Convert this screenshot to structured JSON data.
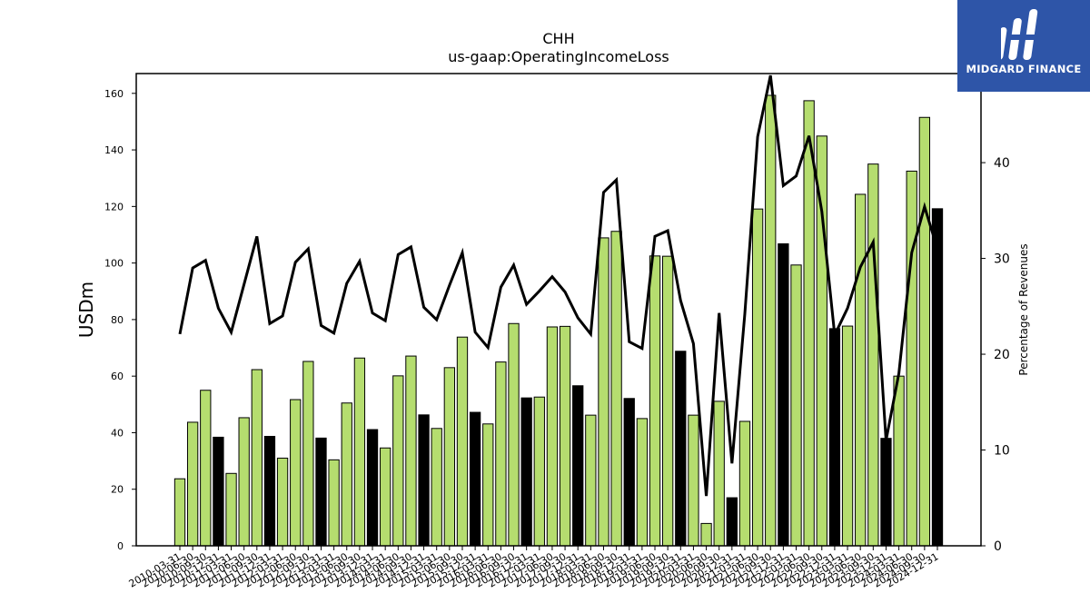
{
  "logo": {
    "text": "MIDGARD FINANCE"
  },
  "chart_data": {
    "type": "bar",
    "title": "CHH",
    "subtitle": "us-gaap:OperatingIncomeLoss",
    "ylabel": "USDm",
    "y2label": "Percentage of Revenues",
    "ylim": [
      0,
      167
    ],
    "y2lim": [
      0,
      49.3
    ],
    "yticks": [
      0,
      20,
      40,
      60,
      80,
      100,
      120,
      140,
      160
    ],
    "y2ticks": [
      0,
      10,
      20,
      30,
      40
    ],
    "colors": {
      "quarter": "#b5dd6f",
      "fiscal_year": "#000000",
      "line": "#000000"
    },
    "categories": [
      "2010-03-31",
      "2010-06-30",
      "2010-09-30",
      "2010-12-31",
      "2011-03-31",
      "2011-06-30",
      "2011-09-30",
      "2011-12-31",
      "2012-03-31",
      "2012-06-30",
      "2012-09-30",
      "2012-12-31",
      "2013-03-31",
      "2013-06-30",
      "2013-09-30",
      "2013-12-31",
      "2014-03-31",
      "2014-06-30",
      "2014-09-30",
      "2014-12-31",
      "2015-03-31",
      "2015-06-30",
      "2015-09-30",
      "2015-12-31",
      "2016-03-31",
      "2016-06-30",
      "2016-09-30",
      "2016-12-31",
      "2017-03-31",
      "2017-06-30",
      "2017-09-30",
      "2017-12-31",
      "2018-03-31",
      "2018-06-30",
      "2018-09-30",
      "2018-12-31",
      "2019-03-31",
      "2019-06-30",
      "2019-09-30",
      "2019-12-31",
      "2020-03-31",
      "2020-06-30",
      "2020-09-30",
      "2020-12-31",
      "2021-03-31",
      "2021-06-30",
      "2021-09-30",
      "2021-12-31",
      "2022-03-31",
      "2022-06-30",
      "2022-09-30",
      "2022-12-31",
      "2023-03-31",
      "2023-06-30",
      "2023-09-30",
      "2023-12-31",
      "2024-03-31",
      "2024-06-30",
      "2024-09-30",
      "2024-12-31"
    ],
    "series": [
      {
        "kind": "bar",
        "values": [
          23.7,
          43.7,
          55.0,
          38.4,
          25.6,
          45.3,
          62.3,
          38.7,
          31.0,
          51.7,
          65.2,
          38.1,
          30.4,
          50.5,
          66.4,
          41.1,
          34.6,
          60.1,
          67.1,
          46.3,
          41.5,
          63.0,
          73.8,
          47.2,
          43.1,
          65.0,
          78.6,
          52.3,
          52.6,
          77.4,
          77.6,
          56.6,
          46.2,
          108.9,
          111.2,
          52.1,
          45.0,
          102.5,
          102.4,
          68.8,
          46.2,
          7.9,
          51.1,
          17.0,
          44.0,
          119.1,
          159.3,
          106.8,
          99.3,
          157.4,
          144.9,
          76.8,
          77.7,
          124.3,
          135.0,
          38.0,
          60.0,
          132.5,
          151.5,
          119.2
        ],
        "highlight": [
          3,
          7,
          11,
          15,
          19,
          23,
          27,
          31,
          35,
          39,
          43,
          47,
          51,
          55,
          59
        ]
      },
      {
        "kind": "line",
        "axis": "right",
        "values": [
          22.1,
          29.0,
          29.8,
          24.8,
          22.3,
          27.3,
          32.3,
          23.2,
          24.0,
          29.6,
          31.0,
          23.0,
          22.2,
          27.4,
          29.7,
          24.3,
          23.5,
          30.4,
          31.2,
          24.9,
          23.6,
          27.2,
          30.6,
          22.3,
          20.7,
          27.0,
          29.3,
          25.2,
          26.6,
          28.1,
          26.5,
          23.8,
          22.1,
          36.9,
          38.2,
          21.3,
          20.6,
          32.3,
          32.9,
          25.6,
          21.1,
          5.2,
          24.3,
          8.6,
          24.2,
          42.7,
          49.1,
          37.6,
          38.6,
          42.8,
          34.9,
          22.0,
          24.8,
          29.1,
          31.7,
          11.0,
          18.0,
          30.6,
          35.4,
          31.0
        ]
      }
    ]
  }
}
